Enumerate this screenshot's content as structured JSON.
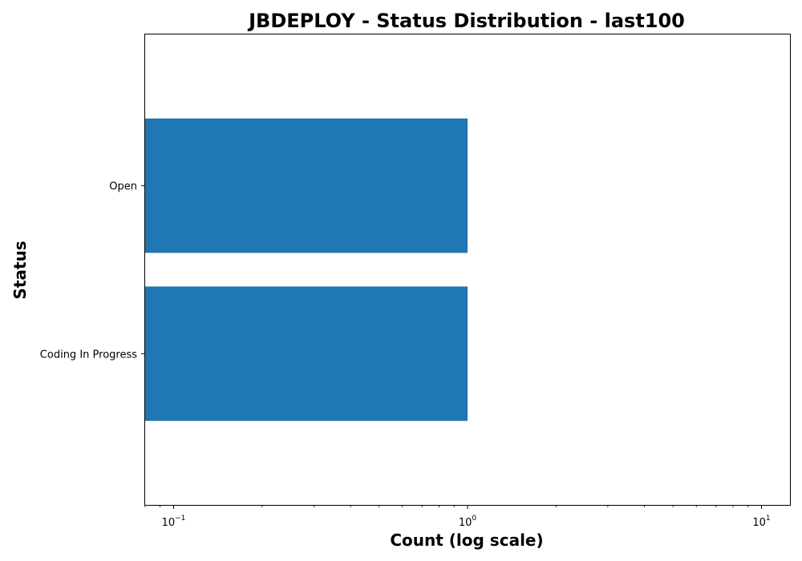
{
  "chart_data": {
    "type": "bar",
    "orientation": "horizontal",
    "title": "JBDEPLOY - Status Distribution - last100",
    "xlabel": "Count (log scale)",
    "ylabel": "Status",
    "x_scale": "log",
    "xlim": [
      0.08,
      12.5
    ],
    "categories": [
      "Coding In Progress",
      "Open"
    ],
    "values": [
      1,
      1
    ],
    "x_ticks": [
      {
        "value": 0.1,
        "base": "10",
        "exp": "−1"
      },
      {
        "value": 1,
        "base": "10",
        "exp": "0"
      },
      {
        "value": 10,
        "base": "10",
        "exp": "1"
      }
    ],
    "bar_color": "#1f77b4",
    "grid": false,
    "legend": false
  }
}
